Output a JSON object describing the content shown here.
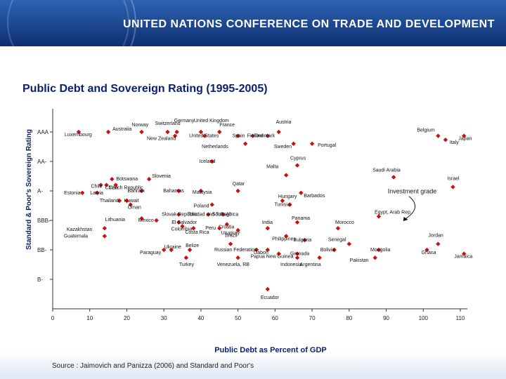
{
  "header": {
    "banner_title": "UNITED NATIONS CONFERENCE ON TRADE AND DEVELOPMENT"
  },
  "slide": {
    "title": "Public Debt and Sovereign Rating (1995-2005)",
    "source_prefix": "Source",
    "source_text": ": Jaimovich and Panizza (2006) and Standard and Poor's"
  },
  "colors": {
    "marker": "#cc1010",
    "title": "#0a1f6e",
    "banner": "#1c4a98",
    "axis": "#333333"
  },
  "chart_data": {
    "type": "scatter",
    "xlabel": "Public Debt as Percent of GDP",
    "ylabel": "Standard & Poor's Sovereign Rating",
    "xlim": [
      0,
      110
    ],
    "x_ticks": [
      "0",
      "10",
      "20",
      "30",
      "40",
      "50",
      "60",
      "70",
      "80",
      "90",
      "100",
      "110"
    ],
    "y_tick_labels": [
      "AAA",
      "AA-",
      "A-",
      "BBB-",
      "BB-",
      "B-"
    ],
    "y_tick_values": [
      19,
      16,
      13,
      10,
      7,
      4
    ],
    "ylim": [
      1,
      21
    ],
    "grid": false,
    "annotation": {
      "text": "Investment grade",
      "x": 98,
      "y": 10.6,
      "arrow_to": [
        94,
        10.0
      ]
    },
    "points": [
      {
        "name": "Luxembourg",
        "x": 7,
        "y": 19
      },
      {
        "name": "Australia",
        "x": 15,
        "y": 19
      },
      {
        "name": "Norway",
        "x": 24,
        "y": 19
      },
      {
        "name": "Switzerland",
        "x": 31,
        "y": 19
      },
      {
        "name": "Germany",
        "x": 33.5,
        "y": 19
      },
      {
        "name": "New Zealand",
        "x": 33,
        "y": 18.6
      },
      {
        "name": "United Kingdom",
        "x": 40,
        "y": 19
      },
      {
        "name": "United States",
        "x": 41,
        "y": 18.6
      },
      {
        "name": "France",
        "x": 45,
        "y": 19
      },
      {
        "name": "Spain",
        "x": 50,
        "y": 18.6
      },
      {
        "name": "Finland",
        "x": 54,
        "y": 18.6
      },
      {
        "name": "Denmark",
        "x": 58,
        "y": 18.6
      },
      {
        "name": "Austria",
        "x": 61,
        "y": 19
      },
      {
        "name": "Netherlands",
        "x": 52,
        "y": 17.8
      },
      {
        "name": "Sweden",
        "x": 65,
        "y": 17.8
      },
      {
        "name": "Portugal",
        "x": 70,
        "y": 17.8
      },
      {
        "name": "Belgium",
        "x": 104,
        "y": 18.6
      },
      {
        "name": "Italy",
        "x": 106,
        "y": 18.2
      },
      {
        "name": "Japan",
        "x": 111,
        "y": 18.6
      },
      {
        "name": "Iceland",
        "x": 43,
        "y": 16
      },
      {
        "name": "Cyprus",
        "x": 66,
        "y": 15.6
      },
      {
        "name": "Malta",
        "x": 63,
        "y": 14.6
      },
      {
        "name": "Saudi Arabia",
        "x": 92,
        "y": 14.4
      },
      {
        "name": "Israel",
        "x": 108,
        "y": 13.4
      },
      {
        "name": "Botswana",
        "x": 16,
        "y": 14.2
      },
      {
        "name": "Chile",
        "x": 13,
        "y": 13.6
      },
      {
        "name": "China",
        "x": 14.5,
        "y": 13.6
      },
      {
        "name": "Czech Republic",
        "x": 17,
        "y": 13.6
      },
      {
        "name": "Slovenia",
        "x": 26,
        "y": 14.2
      },
      {
        "name": "Estonia",
        "x": 8,
        "y": 12.8
      },
      {
        "name": "Latvia",
        "x": 12,
        "y": 12.8
      },
      {
        "name": "Bahrain",
        "x": 24,
        "y": 13
      },
      {
        "name": "Bahamas",
        "x": 34,
        "y": 13
      },
      {
        "name": "Malaysia",
        "x": 40,
        "y": 13
      },
      {
        "name": "Qatar",
        "x": 50,
        "y": 13
      },
      {
        "name": "Barbados",
        "x": 67,
        "y": 12.8
      },
      {
        "name": "Thailand",
        "x": 18,
        "y": 12
      },
      {
        "name": "Kuwait",
        "x": 20,
        "y": 12
      },
      {
        "name": "Oman",
        "x": 21,
        "y": 11.6
      },
      {
        "name": "Poland",
        "x": 43,
        "y": 11.6
      },
      {
        "name": "Hungary",
        "x": 62,
        "y": 12
      },
      {
        "name": "Tunisia",
        "x": 64,
        "y": 11.6
      },
      {
        "name": "Slovak Republic",
        "x": 34,
        "y": 10.6
      },
      {
        "name": "Trinidad and Tobago",
        "x": 42,
        "y": 10.6
      },
      {
        "name": "South Africa",
        "x": 46,
        "y": 10.6
      },
      {
        "name": "Lithuania",
        "x": 24,
        "y": 10.2
      },
      {
        "name": "Mexico",
        "x": 28,
        "y": 10
      },
      {
        "name": "El Salvador",
        "x": 34,
        "y": 9.8
      },
      {
        "name": "Croatia",
        "x": 47,
        "y": 9.6
      },
      {
        "name": "Panama",
        "x": 66,
        "y": 9.8
      },
      {
        "name": "Egypt, Arab Rep.",
        "x": 88,
        "y": 10.4
      },
      {
        "name": "Colombia",
        "x": 35,
        "y": 9.4
      },
      {
        "name": "Kazakhstan",
        "x": 14,
        "y": 9.2
      },
      {
        "name": "Costa Rica",
        "x": 38,
        "y": 9.2
      },
      {
        "name": "Peru",
        "x": 45,
        "y": 9.2
      },
      {
        "name": "Uruguay",
        "x": 50,
        "y": 9
      },
      {
        "name": "India",
        "x": 58,
        "y": 9.2
      },
      {
        "name": "Morocco",
        "x": 77,
        "y": 9.2
      },
      {
        "name": "Guatemala",
        "x": 14,
        "y": 8.4
      },
      {
        "name": "Philippines",
        "x": 63,
        "y": 8.4
      },
      {
        "name": "Bulgaria",
        "x": 68,
        "y": 8
      },
      {
        "name": "Jordan",
        "x": 104,
        "y": 7.6
      },
      {
        "name": "Brazil",
        "x": 48,
        "y": 7.6
      },
      {
        "name": "Senegal",
        "x": 80,
        "y": 7.6
      },
      {
        "name": "Paraguay",
        "x": 30,
        "y": 7
      },
      {
        "name": "Ukraine",
        "x": 32,
        "y": 7
      },
      {
        "name": "Belize",
        "x": 37,
        "y": 7
      },
      {
        "name": "Russian Federation",
        "x": 55,
        "y": 7
      },
      {
        "name": "Gabon",
        "x": 58,
        "y": 7
      },
      {
        "name": "Papua New Guinea",
        "x": 61,
        "y": 6.6
      },
      {
        "name": "Grenada",
        "x": 66,
        "y": 6.6
      },
      {
        "name": "Bolivia",
        "x": 76,
        "y": 7
      },
      {
        "name": "Mongolia",
        "x": 88,
        "y": 7
      },
      {
        "name": "Ghana",
        "x": 101,
        "y": 7
      },
      {
        "name": "Jamaica",
        "x": 111,
        "y": 6.6
      },
      {
        "name": "Turkey",
        "x": 36,
        "y": 6.2
      },
      {
        "name": "Venezuela, RB",
        "x": 50,
        "y": 6.2
      },
      {
        "name": "Indonesia",
        "x": 66,
        "y": 6.2
      },
      {
        "name": "Argentina",
        "x": 72,
        "y": 6.2
      },
      {
        "name": "Pakistan",
        "x": 87,
        "y": 6.2
      },
      {
        "name": "Ecuador",
        "x": 58,
        "y": 3
      }
    ],
    "label_layout": {
      "Luxembourg": [
        -20,
        6
      ],
      "Australia": [
        6,
        -2
      ],
      "Norway": [
        -14,
        -8
      ],
      "Switzerland": [
        -18,
        -10
      ],
      "Germany": [
        -4,
        -14
      ],
      "New Zealand": [
        -40,
        6
      ],
      "United Kingdom": [
        -10,
        -14
      ],
      "United States": [
        -22,
        2
      ],
      "France": [
        0,
        -8
      ],
      "Spain": [
        -8,
        2
      ],
      "Finland": [
        -8,
        2
      ],
      "Denmark": [
        -18,
        2
      ],
      "Austria": [
        -4,
        -12
      ],
      "Netherlands": [
        -62,
        6
      ],
      "Sweden": [
        -28,
        6
      ],
      "Portugal": [
        8,
        4
      ],
      "Belgium": [
        -30,
        -6
      ],
      "Italy": [
        6,
        6
      ],
      "Japan": [
        -8,
        6
      ],
      "Iceland": [
        -18,
        2
      ],
      "Cyprus": [
        -10,
        -8
      ],
      "Malta": [
        -28,
        -10
      ],
      "Saudi Arabia": [
        -30,
        -8
      ],
      "Israel": [
        -8,
        -10
      ],
      "Botswana": [
        6,
        2
      ],
      "Chile": [
        -14,
        4
      ],
      "China": [
        -2,
        6
      ],
      "Czech Republic": [
        -10,
        6
      ],
      "Slovenia": [
        4,
        -2
      ],
      "Estonia": [
        -26,
        2
      ],
      "Latvia": [
        -10,
        2
      ],
      "Bahrain": [
        -20,
        2
      ],
      "Bahamas": [
        -22,
        2
      ],
      "Malaysia": [
        -12,
        4
      ],
      "Qatar": [
        -8,
        -8
      ],
      "Barbados": [
        4,
        6
      ],
      "Thailand": [
        -28,
        2
      ],
      "Kuwait": [
        -4,
        2
      ],
      "Oman": [
        -4,
        6
      ],
      "Poland": [
        -26,
        4
      ],
      "Hungary": [
        -6,
        -4
      ],
      "Tunisia": [
        -22,
        2
      ],
      "Slovak Republic": [
        -24,
        2
      ],
      "Trinidad and Tobago": [
        -30,
        2
      ],
      "South Africa": [
        -16,
        2
      ],
      "Lithuania": [
        -52,
        4
      ],
      "Mexico": [
        -26,
        2
      ],
      "El Salvador": [
        -10,
        2
      ],
      "Croatia": [
        -12,
        6
      ],
      "Panama": [
        -8,
        -4
      ],
      "Egypt, Arab Rep.": [
        -6,
        -4
      ],
      "Colombia": [
        -16,
        6
      ],
      "Kazakhstan": [
        -54,
        4
      ],
      "Costa Rica": [
        -12,
        8
      ],
      "Peru": [
        -20,
        2
      ],
      "Uruguay": [
        -24,
        6
      ],
      "India": [
        -8,
        -6
      ],
      "Morocco": [
        -4,
        -6
      ],
      "Guatemala": [
        -58,
        2
      ],
      "Philippines": [
        -20,
        6
      ],
      "Bulgaria": [
        -16,
        2
      ],
      "Jordan": [
        -14,
        -10
      ],
      "Brazil": [
        -8,
        -10
      ],
      "Senegal": [
        -30,
        -4
      ],
      "Paraguay": [
        -34,
        6
      ],
      "Ukraine": [
        -10,
        -2
      ],
      "Belize": [
        -6,
        -4
      ],
      "Russian Federation": [
        -60,
        2
      ],
      "Gabon": [
        -20,
        6
      ],
      "Papua New Guinea": [
        -40,
        6
      ],
      "Grenada": [
        -10,
        2
      ],
      "Bolivia": [
        -20,
        2
      ],
      "Mongolia": [
        -12,
        2
      ],
      "Ghana": [
        -8,
        6
      ],
      "Jamaica": [
        -14,
        6
      ],
      "Turkey": [
        -10,
        12
      ],
      "Venezuela, RB": [
        -30,
        12
      ],
      "Indonesia": [
        -24,
        12
      ],
      "Argentina": [
        -28,
        12
      ],
      "Pakistan": [
        -36,
        6
      ],
      "Ecuador": [
        -10,
        14
      ]
    }
  }
}
